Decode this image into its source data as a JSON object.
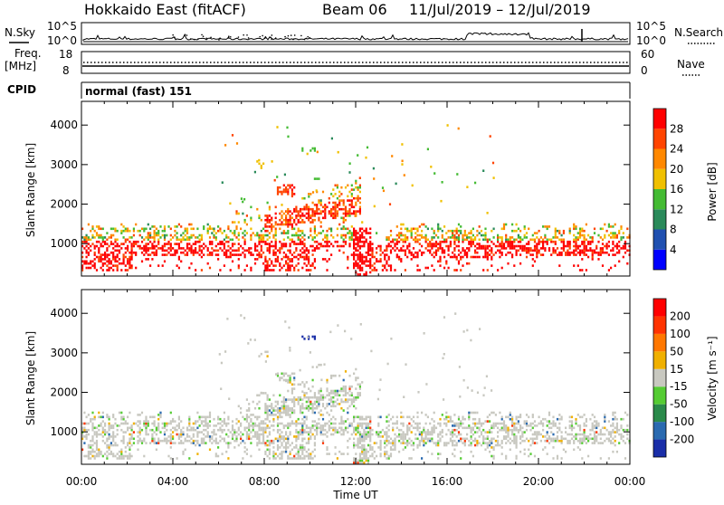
{
  "header": {
    "radar": "Hokkaido East (fitACF)",
    "beam": "Beam 06",
    "dates": "11/Jul/2019 – 12/Jul/2019"
  },
  "strips": {
    "nsky": {
      "label": "N.Sky",
      "hi": "10^5",
      "lo": "10^0",
      "hi_r": "10^5",
      "lo_r": "10^0",
      "right_label": "N.Search"
    },
    "freq": {
      "label_1": "Freq.",
      "label_2": "[MHz]",
      "hi": "18",
      "lo": "8",
      "hi_r": "60",
      "lo_r": "0",
      "right_label": "Nave"
    },
    "cpid": {
      "label": "CPID",
      "value": "normal (fast) 151"
    }
  },
  "chart_data": [
    {
      "type": "heatmap",
      "parameter": "power",
      "ylabel": "Slant Range [km]",
      "ylim": [
        180,
        4600
      ],
      "yticks": [
        "1000",
        "2000",
        "3000",
        "4000"
      ],
      "colorbar_label": "Power [dB]",
      "colorbar_ticks": [
        "4",
        "8",
        "12",
        "16",
        "20",
        "24",
        "28"
      ],
      "colorbar_colors": [
        "#0000ff",
        "#2050b0",
        "#2a8a5a",
        "#44bb33",
        "#f0c000",
        "#ff8800",
        "#ff4400",
        "#ff0000"
      ]
    },
    {
      "type": "heatmap",
      "parameter": "velocity",
      "ylabel": "Slant Range [km]",
      "ylim": [
        180,
        4600
      ],
      "yticks": [
        "1000",
        "2000",
        "3000",
        "4000"
      ],
      "colorbar_label": "Velocity [m s⁻¹]",
      "colorbar_ticks": [
        "200",
        "100",
        "50",
        "15",
        "-15",
        "-50",
        "-100",
        "-200"
      ],
      "colorbar_colors": [
        "#1a2ea8",
        "#2a6ab0",
        "#2a8a4a",
        "#55cc33",
        "#c8c8c0",
        "#f0b000",
        "#ff7700",
        "#ff3300",
        "#ff0000"
      ]
    }
  ],
  "xaxis": {
    "ticks": [
      "00:00",
      "04:00",
      "08:00",
      "12:00",
      "16:00",
      "20:00",
      "00:00"
    ],
    "xlim_hours": [
      0,
      24
    ],
    "label": "Time UT"
  }
}
